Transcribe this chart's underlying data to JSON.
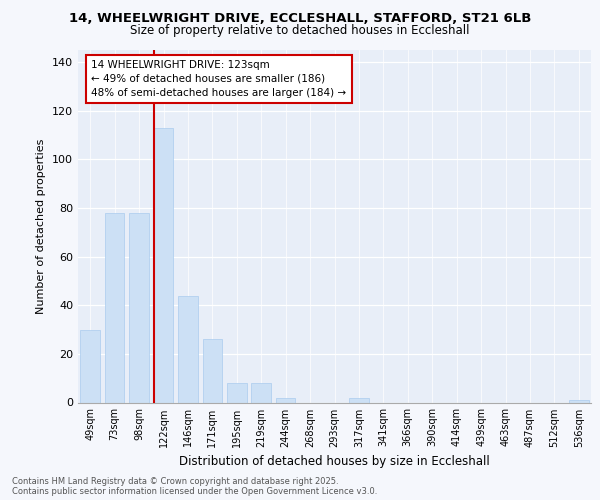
{
  "title1": "14, WHEELWRIGHT DRIVE, ECCLESHALL, STAFFORD, ST21 6LB",
  "title2": "Size of property relative to detached houses in Eccleshall",
  "xlabel": "Distribution of detached houses by size in Eccleshall",
  "ylabel": "Number of detached properties",
  "categories": [
    "49sqm",
    "73sqm",
    "98sqm",
    "122sqm",
    "146sqm",
    "171sqm",
    "195sqm",
    "219sqm",
    "244sqm",
    "268sqm",
    "293sqm",
    "317sqm",
    "341sqm",
    "366sqm",
    "390sqm",
    "414sqm",
    "439sqm",
    "463sqm",
    "487sqm",
    "512sqm",
    "536sqm"
  ],
  "values": [
    30,
    78,
    78,
    113,
    44,
    26,
    8,
    8,
    2,
    0,
    0,
    2,
    0,
    0,
    0,
    0,
    0,
    0,
    0,
    0,
    1
  ],
  "bar_color": "#cce0f5",
  "bar_edge_color": "#aaccee",
  "vline_color": "#cc0000",
  "annotation_line1": "14 WHEELWRIGHT DRIVE: 123sqm",
  "annotation_line2": "← 49% of detached houses are smaller (186)",
  "annotation_line3": "48% of semi-detached houses are larger (184) →",
  "annotation_box_facecolor": "#ffffff",
  "annotation_box_edgecolor": "#cc0000",
  "footer1": "Contains HM Land Registry data © Crown copyright and database right 2025.",
  "footer2": "Contains public sector information licensed under the Open Government Licence v3.0.",
  "ylim": [
    0,
    145
  ],
  "yticks": [
    0,
    20,
    40,
    60,
    80,
    100,
    120,
    140
  ],
  "background_color": "#f5f7fc",
  "plot_bg_color": "#e8eef8"
}
